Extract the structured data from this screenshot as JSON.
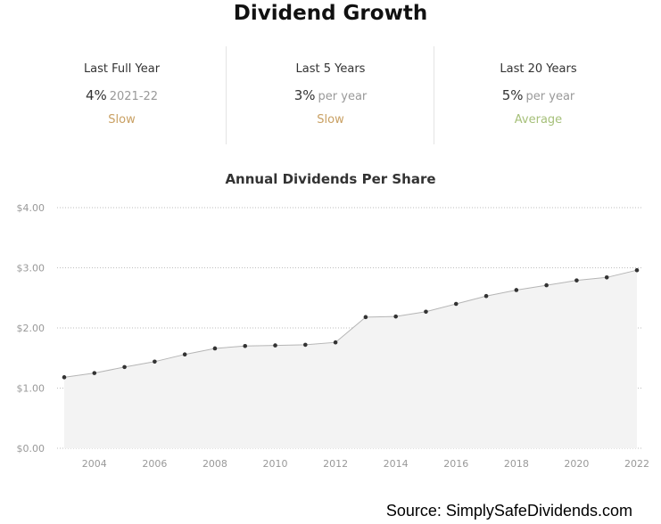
{
  "title": "Dividend Growth",
  "stats": [
    {
      "label": "Last Full Year",
      "value": "4%",
      "sub": "2021-22",
      "rating": "Slow",
      "rating_color": "#c9a063"
    },
    {
      "label": "Last 5 Years",
      "value": "3%",
      "sub": "per year",
      "rating": "Slow",
      "rating_color": "#c9a063"
    },
    {
      "label": "Last 20 Years",
      "value": "5%",
      "sub": "per year",
      "rating": "Average",
      "rating_color": "#a6c07a"
    }
  ],
  "chart_data": {
    "type": "area",
    "title": "Annual Dividends Per Share",
    "x": [
      2003,
      2004,
      2005,
      2006,
      2007,
      2008,
      2009,
      2010,
      2011,
      2012,
      2013,
      2014,
      2015,
      2016,
      2017,
      2018,
      2019,
      2020,
      2021,
      2022
    ],
    "values": [
      1.18,
      1.25,
      1.35,
      1.44,
      1.56,
      1.66,
      1.7,
      1.71,
      1.72,
      1.76,
      2.18,
      2.19,
      2.27,
      2.4,
      2.53,
      2.63,
      2.71,
      2.79,
      2.84,
      2.96
    ],
    "xticks": [
      "2004",
      "2006",
      "2008",
      "2010",
      "2012",
      "2014",
      "2016",
      "2018",
      "2020",
      "2022"
    ],
    "yticks": [
      "$0.00",
      "$1.00",
      "$2.00",
      "$3.00",
      "$4.00"
    ],
    "ylim": [
      0,
      4
    ],
    "xlim": [
      2003,
      2022
    ],
    "grid": true,
    "colors": {
      "line": "#b5b5b5",
      "fill": "#f3f3f3",
      "marker": "#333333",
      "grid": "#bdbdbd",
      "axis_text": "#999999"
    }
  },
  "source": "Source: SimplySafeDividends.com"
}
